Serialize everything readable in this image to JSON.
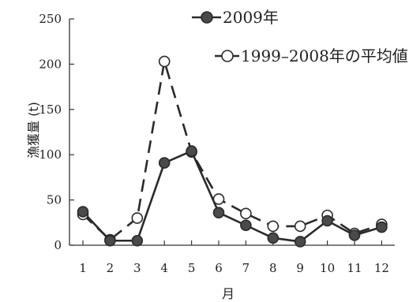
{
  "chart_data": {
    "type": "line",
    "xlabel": "月",
    "ylabel": "漁獲量 (t)",
    "categories": [
      1,
      2,
      3,
      4,
      5,
      6,
      7,
      8,
      9,
      10,
      11,
      12
    ],
    "ylim": [
      0,
      250
    ],
    "yticks": [
      0,
      50,
      100,
      150,
      200,
      250
    ],
    "grid": false,
    "legend_position": "top-right",
    "series": [
      {
        "name": "2009年",
        "values": [
          37,
          5,
          5,
          91,
          104,
          36,
          22,
          8,
          4,
          27,
          11,
          20
        ],
        "style": "solid",
        "marker": "filled-circle",
        "color": "#2a2a2a"
      },
      {
        "name": "1999–2008年の平均値",
        "values": [
          34,
          6,
          30,
          203,
          103,
          51,
          35,
          21,
          21,
          33,
          13,
          23
        ],
        "style": "dashed",
        "marker": "open-circle",
        "color": "#2a2a2a"
      }
    ]
  }
}
